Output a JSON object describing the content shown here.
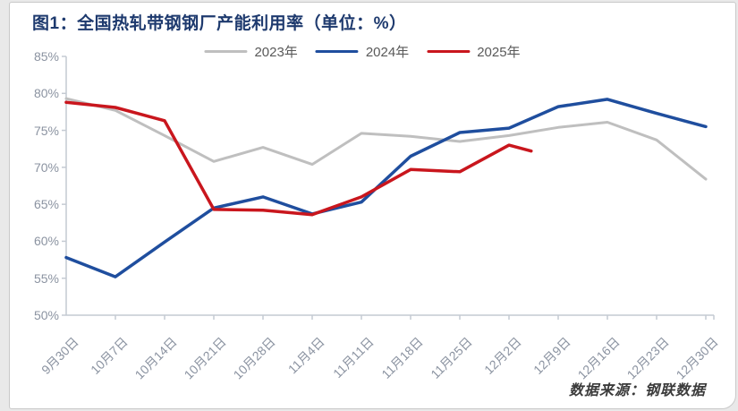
{
  "title": "图1：全国热轧带钢钢厂产能利用率（单位：%）",
  "legend": {
    "items": [
      {
        "label": "2023年",
        "color": "#bfbfbf"
      },
      {
        "label": "2024年",
        "color": "#1f4e9e"
      },
      {
        "label": "2025年",
        "color": "#c9161d"
      }
    ]
  },
  "source": "数据来源：钢联数据",
  "colors": {
    "title_text": "#1e3a6e",
    "axis_label_text": "#8b93a1",
    "axis_line": "#c4cad2",
    "series_2023": "#bfbfbf",
    "series_2024": "#1f4e9e",
    "series_2025": "#c9161d",
    "card_background": "#ffffff",
    "page_background": "#e9e9e9"
  },
  "chart_data": {
    "type": "line",
    "title": "图1：全国热轧带钢钢厂产能利用率（单位：%）",
    "categories": [
      "9月30日",
      "10月7日",
      "10月14日",
      "10月21日",
      "10月28日",
      "11月4日",
      "11月11日",
      "11月18日",
      "11月25日",
      "12月2日",
      "12月9日",
      "12月16日",
      "12月23日",
      "12月30日"
    ],
    "series": [
      {
        "name": "2023年",
        "color": "#bfbfbf",
        "values": [
          79.3,
          77.7,
          74.3,
          70.8,
          72.7,
          70.4,
          74.6,
          74.2,
          73.5,
          74.3,
          75.4,
          76.1,
          73.7,
          68.4
        ]
      },
      {
        "name": "2024年",
        "color": "#1f4e9e",
        "values": [
          57.8,
          55.2,
          59.9,
          64.5,
          66.0,
          63.7,
          65.3,
          71.5,
          74.7,
          75.3,
          78.2,
          79.2,
          77.3,
          75.5
        ]
      },
      {
        "name": "2025年",
        "color": "#c9161d",
        "values": [
          78.8,
          78.1,
          76.3,
          64.3,
          64.2,
          63.6,
          66.0,
          69.7,
          69.4,
          73.0
        ],
        "partial_end": {
          "position_after_index": 9,
          "fraction": 0.45,
          "value": 72.2
        }
      }
    ],
    "ylim": [
      50,
      85
    ],
    "ytick_step": 5,
    "ytick_labels": [
      "85%",
      "80%",
      "75%",
      "70%",
      "65%",
      "60%",
      "55%",
      "50%"
    ],
    "grid": false,
    "legend_position": "top-center",
    "source": "数据来源：钢联数据"
  }
}
